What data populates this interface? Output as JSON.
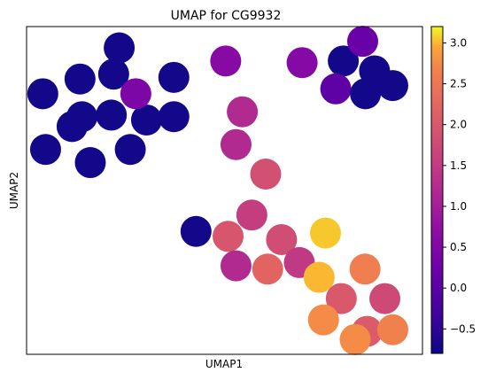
{
  "chart_data": {
    "type": "scatter",
    "title": "UMAP for CG9932",
    "xlabel": "UMAP1",
    "ylabel": "UMAP2",
    "xticks": false,
    "yticks": false,
    "grid": false,
    "colormap": "plasma",
    "colorbar": {
      "range": [
        -0.8,
        3.2
      ],
      "ticks": [
        -0.5,
        0.0,
        0.5,
        1.0,
        1.5,
        2.0,
        2.5,
        3.0
      ],
      "tick_labels": [
        "−0.5",
        "0.0",
        "0.5",
        "1.0",
        "1.5",
        "2.0",
        "2.5",
        "3.0"
      ]
    },
    "xlim": [
      0,
      100
    ],
    "ylim": [
      0,
      100
    ],
    "points": [
      {
        "x": 4.1,
        "y": 79.5,
        "value": -0.75
      },
      {
        "x": 4.8,
        "y": 62.5,
        "value": -0.75
      },
      {
        "x": 11.5,
        "y": 69.5,
        "value": -0.75
      },
      {
        "x": 14.0,
        "y": 72.5,
        "value": -0.75
      },
      {
        "x": 13.5,
        "y": 84.0,
        "value": -0.75
      },
      {
        "x": 16.1,
        "y": 58.5,
        "value": -0.75
      },
      {
        "x": 21.4,
        "y": 73.0,
        "value": -0.75
      },
      {
        "x": 22.0,
        "y": 85.5,
        "value": -0.75
      },
      {
        "x": 23.4,
        "y": 93.5,
        "value": -0.75
      },
      {
        "x": 26.2,
        "y": 62.5,
        "value": -0.75
      },
      {
        "x": 30.3,
        "y": 71.5,
        "value": -0.75
      },
      {
        "x": 37.2,
        "y": 84.5,
        "value": -0.75
      },
      {
        "x": 37.2,
        "y": 72.5,
        "value": -0.75
      },
      {
        "x": 27.6,
        "y": 79.5,
        "value": 0.45
      },
      {
        "x": 42.8,
        "y": 37.5,
        "value": -0.75
      },
      {
        "x": 50.3,
        "y": 89.5,
        "value": 0.6
      },
      {
        "x": 54.5,
        "y": 74.0,
        "value": 1.2
      },
      {
        "x": 52.9,
        "y": 64.0,
        "value": 1.2
      },
      {
        "x": 60.4,
        "y": 55.0,
        "value": 1.85
      },
      {
        "x": 56.9,
        "y": 42.5,
        "value": 1.55
      },
      {
        "x": 50.9,
        "y": 36.0,
        "value": 1.95
      },
      {
        "x": 52.9,
        "y": 27.0,
        "value": 1.2
      },
      {
        "x": 60.9,
        "y": 26.0,
        "value": 2.2
      },
      {
        "x": 64.4,
        "y": 35.0,
        "value": 1.8
      },
      {
        "x": 68.9,
        "y": 28.0,
        "value": 1.45
      },
      {
        "x": 69.6,
        "y": 89.0,
        "value": 0.55
      },
      {
        "x": 75.5,
        "y": 37.0,
        "value": 3.05
      },
      {
        "x": 73.9,
        "y": 23.5,
        "value": 3.0
      },
      {
        "x": 79.5,
        "y": 17.0,
        "value": 2.0
      },
      {
        "x": 75.0,
        "y": 10.5,
        "value": 2.75
      },
      {
        "x": 85.5,
        "y": 26.0,
        "value": 2.6
      },
      {
        "x": 86.0,
        "y": 7.0,
        "value": 2.05
      },
      {
        "x": 83.0,
        "y": 4.5,
        "value": 2.75
      },
      {
        "x": 90.5,
        "y": 17.0,
        "value": 1.75
      },
      {
        "x": 92.5,
        "y": 7.5,
        "value": 2.65
      },
      {
        "x": 80.0,
        "y": 89.5,
        "value": -0.75
      },
      {
        "x": 84.9,
        "y": 95.5,
        "value": 0.2
      },
      {
        "x": 87.9,
        "y": 86.5,
        "value": -0.75
      },
      {
        "x": 78.1,
        "y": 81.0,
        "value": 0.05
      },
      {
        "x": 85.6,
        "y": 79.5,
        "value": -0.75
      },
      {
        "x": 92.5,
        "y": 82.0,
        "value": -0.75
      }
    ]
  }
}
